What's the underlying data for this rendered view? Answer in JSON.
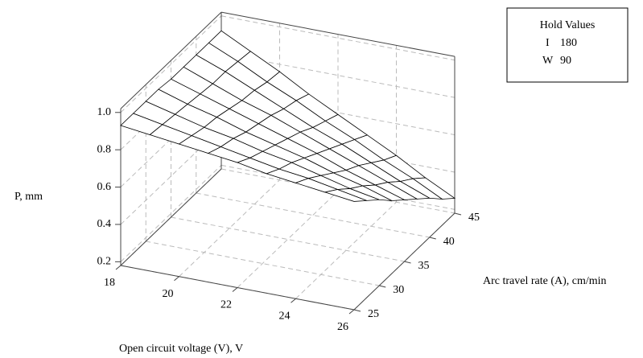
{
  "chart_data": {
    "type": "surface",
    "xlabel": "Open circuit voltage (V), V",
    "ylabel": "Arc travel rate (A), cm/min",
    "zlabel": "P, mm",
    "x": [
      18,
      19,
      20,
      21,
      22,
      23,
      24,
      25,
      26
    ],
    "y": [
      25,
      27.5,
      30,
      32.5,
      35,
      37.5,
      40,
      42.5,
      45
    ],
    "z": [
      [
        0.93,
        0.93,
        0.93,
        0.93,
        0.92,
        0.92,
        0.92,
        0.92,
        0.92
      ],
      [
        0.91,
        0.9,
        0.89,
        0.88,
        0.87,
        0.86,
        0.86,
        0.85,
        0.84
      ],
      [
        0.89,
        0.87,
        0.85,
        0.84,
        0.82,
        0.8,
        0.79,
        0.77,
        0.76
      ],
      [
        0.87,
        0.84,
        0.82,
        0.79,
        0.77,
        0.75,
        0.72,
        0.7,
        0.67
      ],
      [
        0.85,
        0.81,
        0.78,
        0.75,
        0.72,
        0.69,
        0.65,
        0.62,
        0.59
      ],
      [
        0.82,
        0.78,
        0.75,
        0.71,
        0.67,
        0.63,
        0.59,
        0.55,
        0.51
      ],
      [
        0.8,
        0.76,
        0.71,
        0.66,
        0.61,
        0.57,
        0.52,
        0.47,
        0.43
      ],
      [
        0.78,
        0.73,
        0.67,
        0.62,
        0.56,
        0.51,
        0.45,
        0.4,
        0.34
      ],
      [
        0.76,
        0.7,
        0.64,
        0.57,
        0.51,
        0.45,
        0.39,
        0.32,
        0.26
      ]
    ],
    "xlim": [
      18,
      26
    ],
    "xticks": [
      18,
      20,
      22,
      24,
      26
    ],
    "ylim": [
      25,
      45
    ],
    "yticks": [
      25,
      30,
      35,
      40,
      45
    ],
    "zlim": [
      0.18,
      1.02
    ],
    "zticks": [
      0.2,
      0.4,
      0.6,
      0.8,
      {
        "value": 1,
        "label": "1.0"
      }
    ],
    "color": "#ffffff",
    "grid": true,
    "legend": {
      "title": "Hold Values",
      "items": [
        {
          "name": "I",
          "value": 180
        },
        {
          "name": "W",
          "value": 90
        }
      ]
    }
  }
}
